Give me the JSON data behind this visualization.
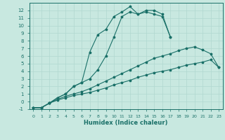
{
  "xlabel": "Humidex (Indice chaleur)",
  "ylabel": "",
  "background_color": "#c8e8e0",
  "grid_color": "#b0d8d0",
  "line_color": "#1a7068",
  "xlim": [
    -0.5,
    23.5
  ],
  "ylim": [
    -1,
    13
  ],
  "xticks": [
    0,
    1,
    2,
    3,
    4,
    5,
    6,
    7,
    8,
    9,
    10,
    11,
    12,
    13,
    14,
    15,
    16,
    17,
    18,
    19,
    20,
    21,
    22,
    23
  ],
  "yticks": [
    -1,
    0,
    1,
    2,
    3,
    4,
    5,
    6,
    7,
    8,
    9,
    10,
    11,
    12
  ],
  "line1_x": [
    0,
    1,
    2,
    3,
    4,
    5,
    6,
    7,
    8,
    9,
    10,
    11,
    12,
    13,
    14,
    15,
    16,
    17,
    18,
    19,
    20,
    21,
    22,
    23
  ],
  "line1_y": [
    -0.8,
    -0.8,
    -0.2,
    0.2,
    0.5,
    0.8,
    1.0,
    1.2,
    1.5,
    1.8,
    2.2,
    2.5,
    2.8,
    3.2,
    3.5,
    3.8,
    4.0,
    4.2,
    4.5,
    4.8,
    5.0,
    5.2,
    5.5,
    4.5
  ],
  "line2_x": [
    0,
    1,
    2,
    3,
    4,
    5,
    6,
    7,
    8,
    9,
    10,
    11,
    12,
    13,
    14,
    15,
    16,
    17,
    18,
    19,
    20,
    21,
    22,
    23
  ],
  "line2_y": [
    -0.8,
    -0.8,
    -0.2,
    0.3,
    0.7,
    1.0,
    1.3,
    1.7,
    2.2,
    2.7,
    3.2,
    3.7,
    4.2,
    4.7,
    5.2,
    5.7,
    6.0,
    6.3,
    6.7,
    7.0,
    7.2,
    6.8,
    6.3,
    4.5
  ],
  "line3_x": [
    0,
    1,
    2,
    3,
    4,
    5,
    6,
    7,
    8,
    9,
    10,
    11,
    12,
    13,
    14,
    15,
    16,
    17,
    18,
    19,
    20,
    21,
    22,
    23
  ],
  "line3_y": [
    -0.8,
    -0.8,
    -0.2,
    0.5,
    1.0,
    2.0,
    2.5,
    3.0,
    4.2,
    6.0,
    8.5,
    11.2,
    11.8,
    11.5,
    11.8,
    11.5,
    11.2,
    8.5,
    null,
    null,
    null,
    null,
    null,
    null
  ],
  "line4_x": [
    0,
    1,
    2,
    3,
    4,
    5,
    6,
    7,
    8,
    9,
    10,
    11,
    12,
    13,
    14,
    15,
    16,
    17,
    18,
    19,
    20,
    21,
    22,
    23
  ],
  "line4_y": [
    -0.8,
    -0.8,
    -0.2,
    0.5,
    1.0,
    2.0,
    2.5,
    6.5,
    8.8,
    9.5,
    11.2,
    11.8,
    12.5,
    11.5,
    12.0,
    12.0,
    11.5,
    8.5,
    null,
    null,
    null,
    null,
    null,
    null
  ]
}
